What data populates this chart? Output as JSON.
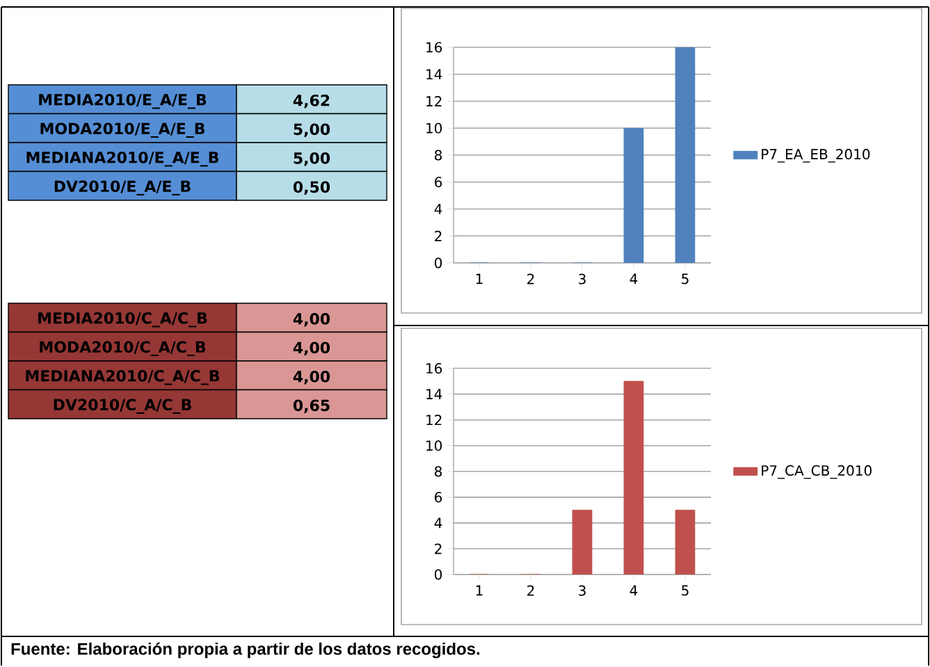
{
  "chart_data": [
    {
      "type": "other",
      "colors": [
        "#558ed5",
        "#b7dee8"
      ],
      "annotations": [
        "MEDIA2010/E_A/E_B",
        "4,62",
        "MODA2010/E_A/E_B",
        "5,00",
        "MEDIANA2010/E_A/E_B",
        "5,00",
        "DV2010/E_A/E_B",
        "0,50"
      ]
    },
    {
      "type": "bar",
      "categories": [
        "1",
        "2",
        "3",
        "4",
        "5"
      ],
      "series": [
        {
          "name": "P7_EA_EB_2010",
          "color": "#4f81bd",
          "values": [
            0,
            0,
            0,
            10,
            16
          ]
        }
      ],
      "ylim": [
        0,
        16
      ],
      "yticks": [
        0,
        2,
        4,
        6,
        8,
        10,
        12,
        14,
        16
      ],
      "grid": "y",
      "legend": "right"
    },
    {
      "type": "other",
      "colors": [
        "#953735",
        "#d99694"
      ],
      "annotations": [
        "MEDIA2010/C_A/C_B",
        "4,00",
        "MODA2010/C_A/C_B",
        "4,00",
        "MEDIANA2010/C_A/C_B",
        "4,00",
        "DV2010/C_A/C_B",
        "0,65"
      ]
    },
    {
      "type": "bar",
      "categories": [
        "1",
        "2",
        "3",
        "4",
        "5"
      ],
      "series": [
        {
          "name": "P7_CA_CB_2010",
          "color": "#c0504d",
          "values": [
            0,
            0,
            5,
            15,
            5
          ]
        }
      ],
      "ylim": [
        0,
        16
      ],
      "yticks": [
        0,
        2,
        4,
        6,
        8,
        10,
        12,
        14,
        16
      ],
      "grid": "y",
      "legend": "right",
      "annotations": [
        "Fuente: Elaboración propia a partir de los datos recogidos."
      ]
    }
  ]
}
